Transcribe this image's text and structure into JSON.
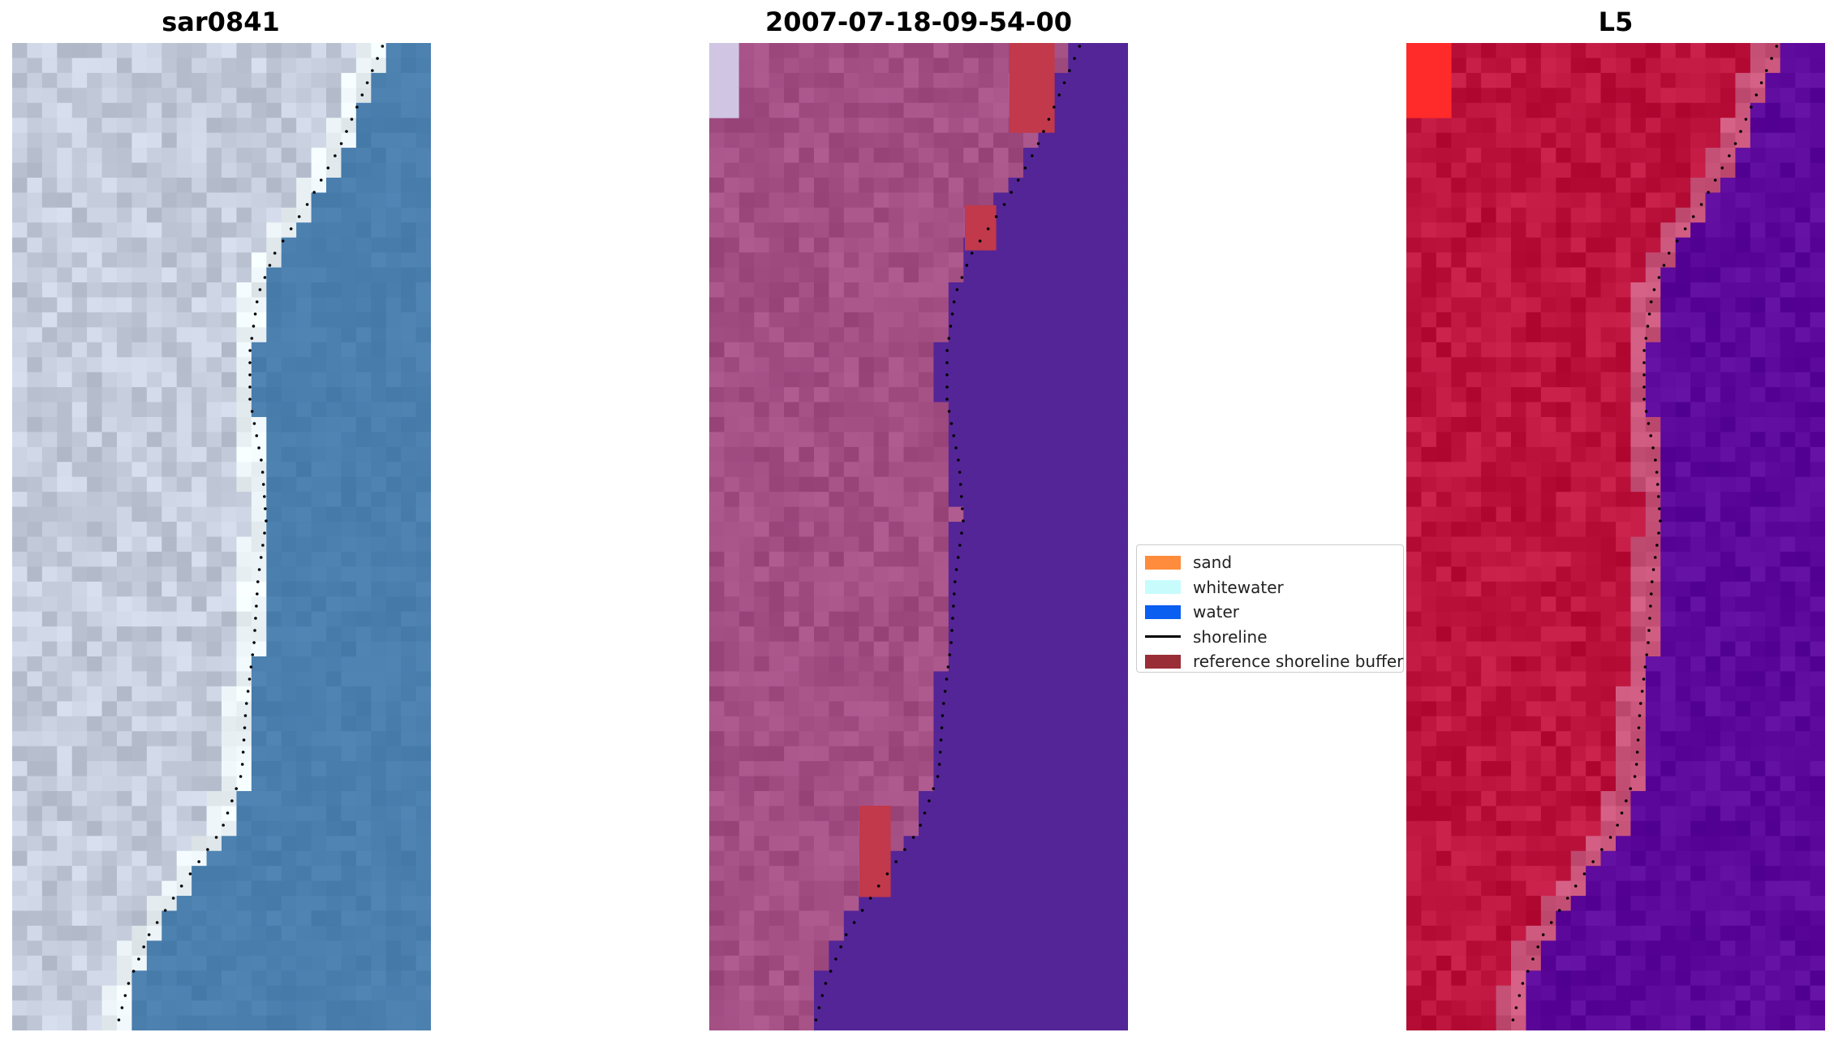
{
  "figure": {
    "panels": [
      {
        "title": "sar0841",
        "kind": "rgb"
      },
      {
        "title": "2007-07-18-09-54-00",
        "kind": "classified"
      },
      {
        "title": "L5",
        "kind": "false-color"
      }
    ],
    "legend": {
      "items": [
        {
          "label": "sand",
          "color": "#ff8c3c",
          "type": "patch"
        },
        {
          "label": "whitewater",
          "color": "#c8fcfc",
          "type": "patch"
        },
        {
          "label": "water",
          "color": "#0a5ef0",
          "type": "patch"
        },
        {
          "label": "shoreline",
          "color": "#000000",
          "type": "line"
        },
        {
          "label": "reference shoreline buffer",
          "color": "#9a2e36",
          "type": "patch"
        }
      ]
    },
    "colors": {
      "rgb_land": "#c4ccdc",
      "rgb_surf": "#eaf2f6",
      "rgb_water": "#4a7fae",
      "cls_land": "#a34f84",
      "cls_water": "#542597",
      "cls_buffer": "#c1394a",
      "fc_land": "#bd143e",
      "fc_band": "#c9547a",
      "fc_water": "#5b089b"
    }
  }
}
